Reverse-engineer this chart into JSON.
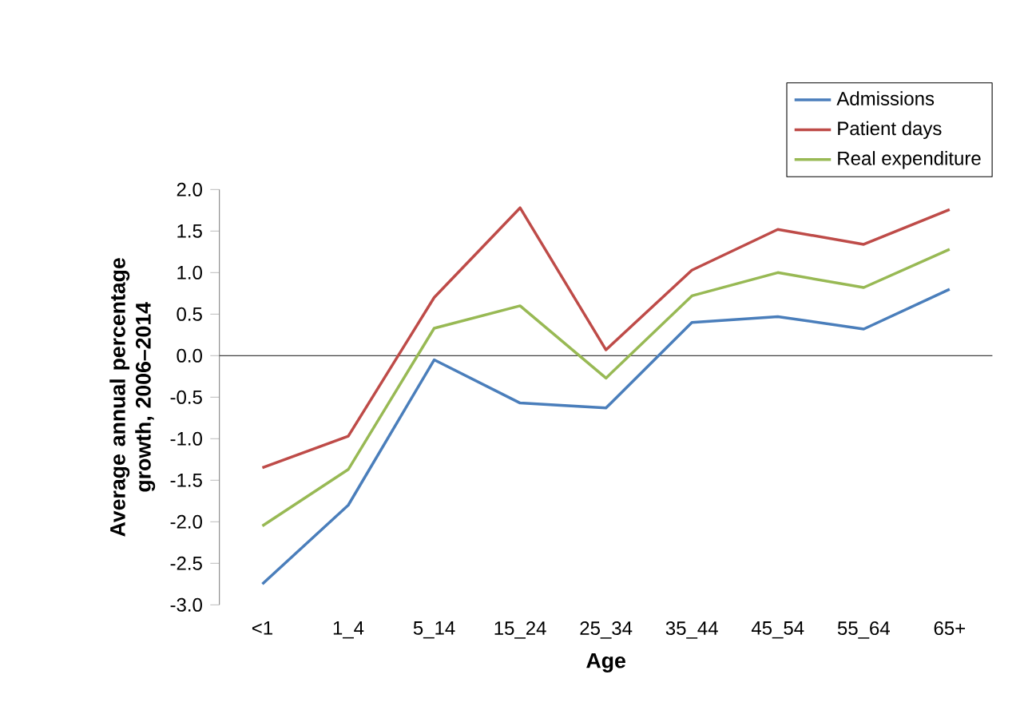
{
  "chart_data": {
    "type": "line",
    "xlabel": "Age",
    "ylabel": "Average annual percentage growth, 2006–2014",
    "categories": [
      "<1",
      "1_4",
      "5_14",
      "15_24",
      "25_34",
      "35_44",
      "45_54",
      "55_64",
      "65+"
    ],
    "series": [
      {
        "name": "Admissions",
        "color": "#4a7ebb",
        "values": [
          -2.75,
          -1.8,
          -0.05,
          -0.57,
          -0.63,
          0.4,
          0.47,
          0.32,
          0.8
        ]
      },
      {
        "name": "Patient days",
        "color": "#be4b48",
        "values": [
          -1.35,
          -0.97,
          0.7,
          1.78,
          0.07,
          1.03,
          1.52,
          1.34,
          1.76
        ]
      },
      {
        "name": "Real expenditure",
        "color": "#98b954",
        "values": [
          -2.05,
          -1.37,
          0.33,
          0.6,
          -0.27,
          0.72,
          1.0,
          0.82,
          1.28
        ]
      }
    ],
    "ylim": [
      -3.0,
      2.0
    ],
    "yticks": [
      {
        "value": -3.0,
        "label": "-3.0"
      },
      {
        "value": -2.5,
        "label": "-2.5"
      },
      {
        "value": -2.0,
        "label": "-2.0"
      },
      {
        "value": -1.5,
        "label": "-1.5"
      },
      {
        "value": -1.0,
        "label": "-1.0"
      },
      {
        "value": -0.5,
        "label": "-0.5"
      },
      {
        "value": 0,
        "label": "0.0"
      },
      {
        "value": 0.5,
        "label": "0.5"
      },
      {
        "value": 1.0,
        "label": "1.0"
      },
      {
        "value": 1.5,
        "label": "1.5"
      },
      {
        "value": 2.0,
        "label": "2.0"
      }
    ],
    "ref_lines": [
      {
        "axis": "y",
        "value": 0,
        "color": "#000000"
      }
    ],
    "grid": false,
    "legend": "top right",
    "marker": "none",
    "line_style": "solid"
  }
}
